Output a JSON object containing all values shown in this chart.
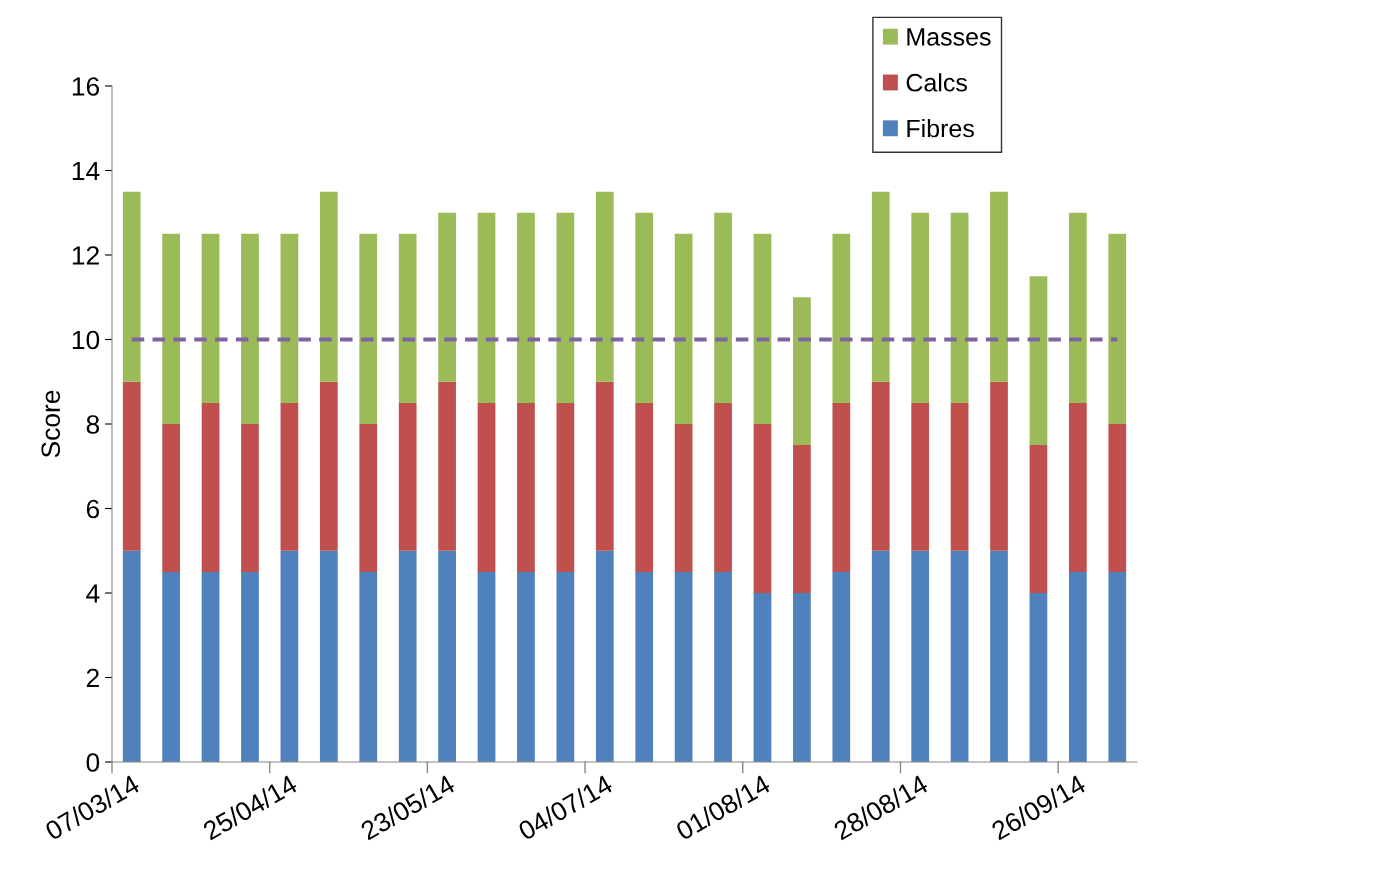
{
  "chart_data": {
    "type": "bar",
    "stacked": true,
    "ylabel": "Score",
    "categories": [
      "07/03/14",
      null,
      null,
      null,
      "25/04/14",
      null,
      null,
      null,
      "23/05/14",
      null,
      null,
      null,
      "04/07/14",
      null,
      null,
      null,
      "01/08/14",
      null,
      null,
      null,
      "28/08/14",
      null,
      null,
      null,
      "26/09/14",
      null
    ],
    "series": [
      {
        "name": "Fibres",
        "color": "#4f81bd",
        "values": [
          5,
          4.5,
          4.5,
          4.5,
          5,
          5,
          4.5,
          5,
          5,
          4.5,
          4.5,
          4.5,
          5,
          4.5,
          4.5,
          4.5,
          4,
          4,
          4.5,
          5,
          5,
          5,
          5,
          4,
          4.5,
          4.5
        ]
      },
      {
        "name": "Calcs",
        "color": "#c0504d",
        "values": [
          4,
          3.5,
          4,
          3.5,
          3.5,
          4,
          3.5,
          3.5,
          4,
          4,
          4,
          4,
          4,
          4,
          3.5,
          4,
          4,
          3.5,
          4,
          4,
          3.5,
          3.5,
          4,
          3.5,
          4,
          3.5
        ]
      },
      {
        "name": "Masses",
        "color": "#9bbb59",
        "values": [
          4.5,
          4.5,
          4,
          4.5,
          4,
          4.5,
          4.5,
          4,
          4,
          4.5,
          4.5,
          4.5,
          4.5,
          4.5,
          4.5,
          4.5,
          4.5,
          3.5,
          4,
          4.5,
          4.5,
          4.5,
          4.5,
          4,
          4.5,
          4.5
        ]
      }
    ],
    "ylim": [
      0,
      16
    ],
    "yticks": [
      0,
      2,
      4,
      6,
      8,
      10,
      12,
      14,
      16
    ],
    "ref_lines": [
      {
        "axis": "y",
        "value": 10,
        "color": "#8064a2",
        "line_style": "dashed"
      }
    ],
    "grid": false,
    "legend": "top right"
  }
}
